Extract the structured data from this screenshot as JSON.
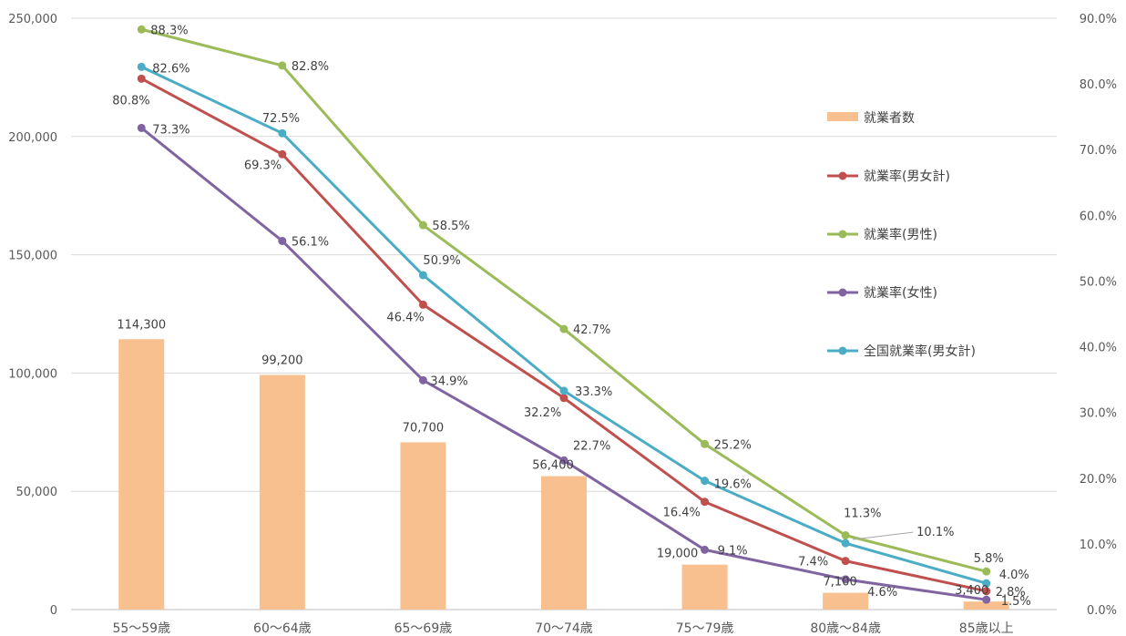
{
  "chart_data": {
    "type": "bar",
    "categories": [
      "55～59歳",
      "60～64歳",
      "65～69歳",
      "70～74歳",
      "75～79歳",
      "80歳～84歳",
      "85歳以上"
    ],
    "bar_series": {
      "name": "就業者数",
      "values": [
        114300,
        99200,
        70700,
        56400,
        19000,
        7100,
        3400
      ],
      "labels": [
        "114,300",
        "99,200",
        "70,700",
        "56,400",
        "19,000",
        "7,100",
        "3,400"
      ],
      "color": "#f8bf8f"
    },
    "line_series": [
      {
        "name": "就業率(男女計)",
        "color": "#c0504d",
        "values": [
          80.8,
          69.3,
          46.4,
          32.2,
          16.4,
          7.4,
          2.8
        ],
        "labels": [
          "80.8%",
          "69.3%",
          "46.4%",
          "32.2%",
          "16.4%",
          "7.4%",
          "2.8%"
        ]
      },
      {
        "name": "就業率(男性)",
        "color": "#9bbb59",
        "values": [
          88.3,
          82.8,
          58.5,
          42.7,
          25.2,
          11.3,
          5.8
        ],
        "labels": [
          "88.3%",
          "82.8%",
          "58.5%",
          "42.7%",
          "25.2%",
          "11.3%",
          "5.8%"
        ]
      },
      {
        "name": "就業率(女性)",
        "color": "#8064a2",
        "values": [
          73.3,
          56.1,
          34.9,
          22.7,
          9.1,
          4.6,
          1.5
        ],
        "labels": [
          "73.3%",
          "56.1%",
          "34.9%",
          "22.7%",
          "9.1%",
          "4.6%",
          "1.5%"
        ]
      },
      {
        "name": "全国就業率(男女計)",
        "color": "#4bacc6",
        "values": [
          82.6,
          72.5,
          50.9,
          33.3,
          19.6,
          10.1,
          4.0
        ],
        "labels": [
          "82.6%",
          "72.5%",
          "50.9%",
          "33.3%",
          "19.6%",
          "10.1%",
          "4.0%"
        ]
      }
    ],
    "y_left": {
      "min": 0,
      "max": 250000,
      "ticks": [
        0,
        50000,
        100000,
        150000,
        200000,
        250000
      ],
      "tick_labels": [
        "0",
        "50,000",
        "100,000",
        "150,000",
        "200,000",
        "250,000"
      ]
    },
    "y_right": {
      "min": 0,
      "max": 90,
      "ticks": [
        0,
        10,
        20,
        30,
        40,
        50,
        60,
        70,
        80,
        90
      ],
      "tick_labels": [
        "0.0%",
        "10.0%",
        "20.0%",
        "30.0%",
        "40.0%",
        "50.0%",
        "60.0%",
        "70.0%",
        "80.0%",
        "90.0%"
      ]
    },
    "gridlines": "left-axis",
    "legend_position": "right"
  }
}
